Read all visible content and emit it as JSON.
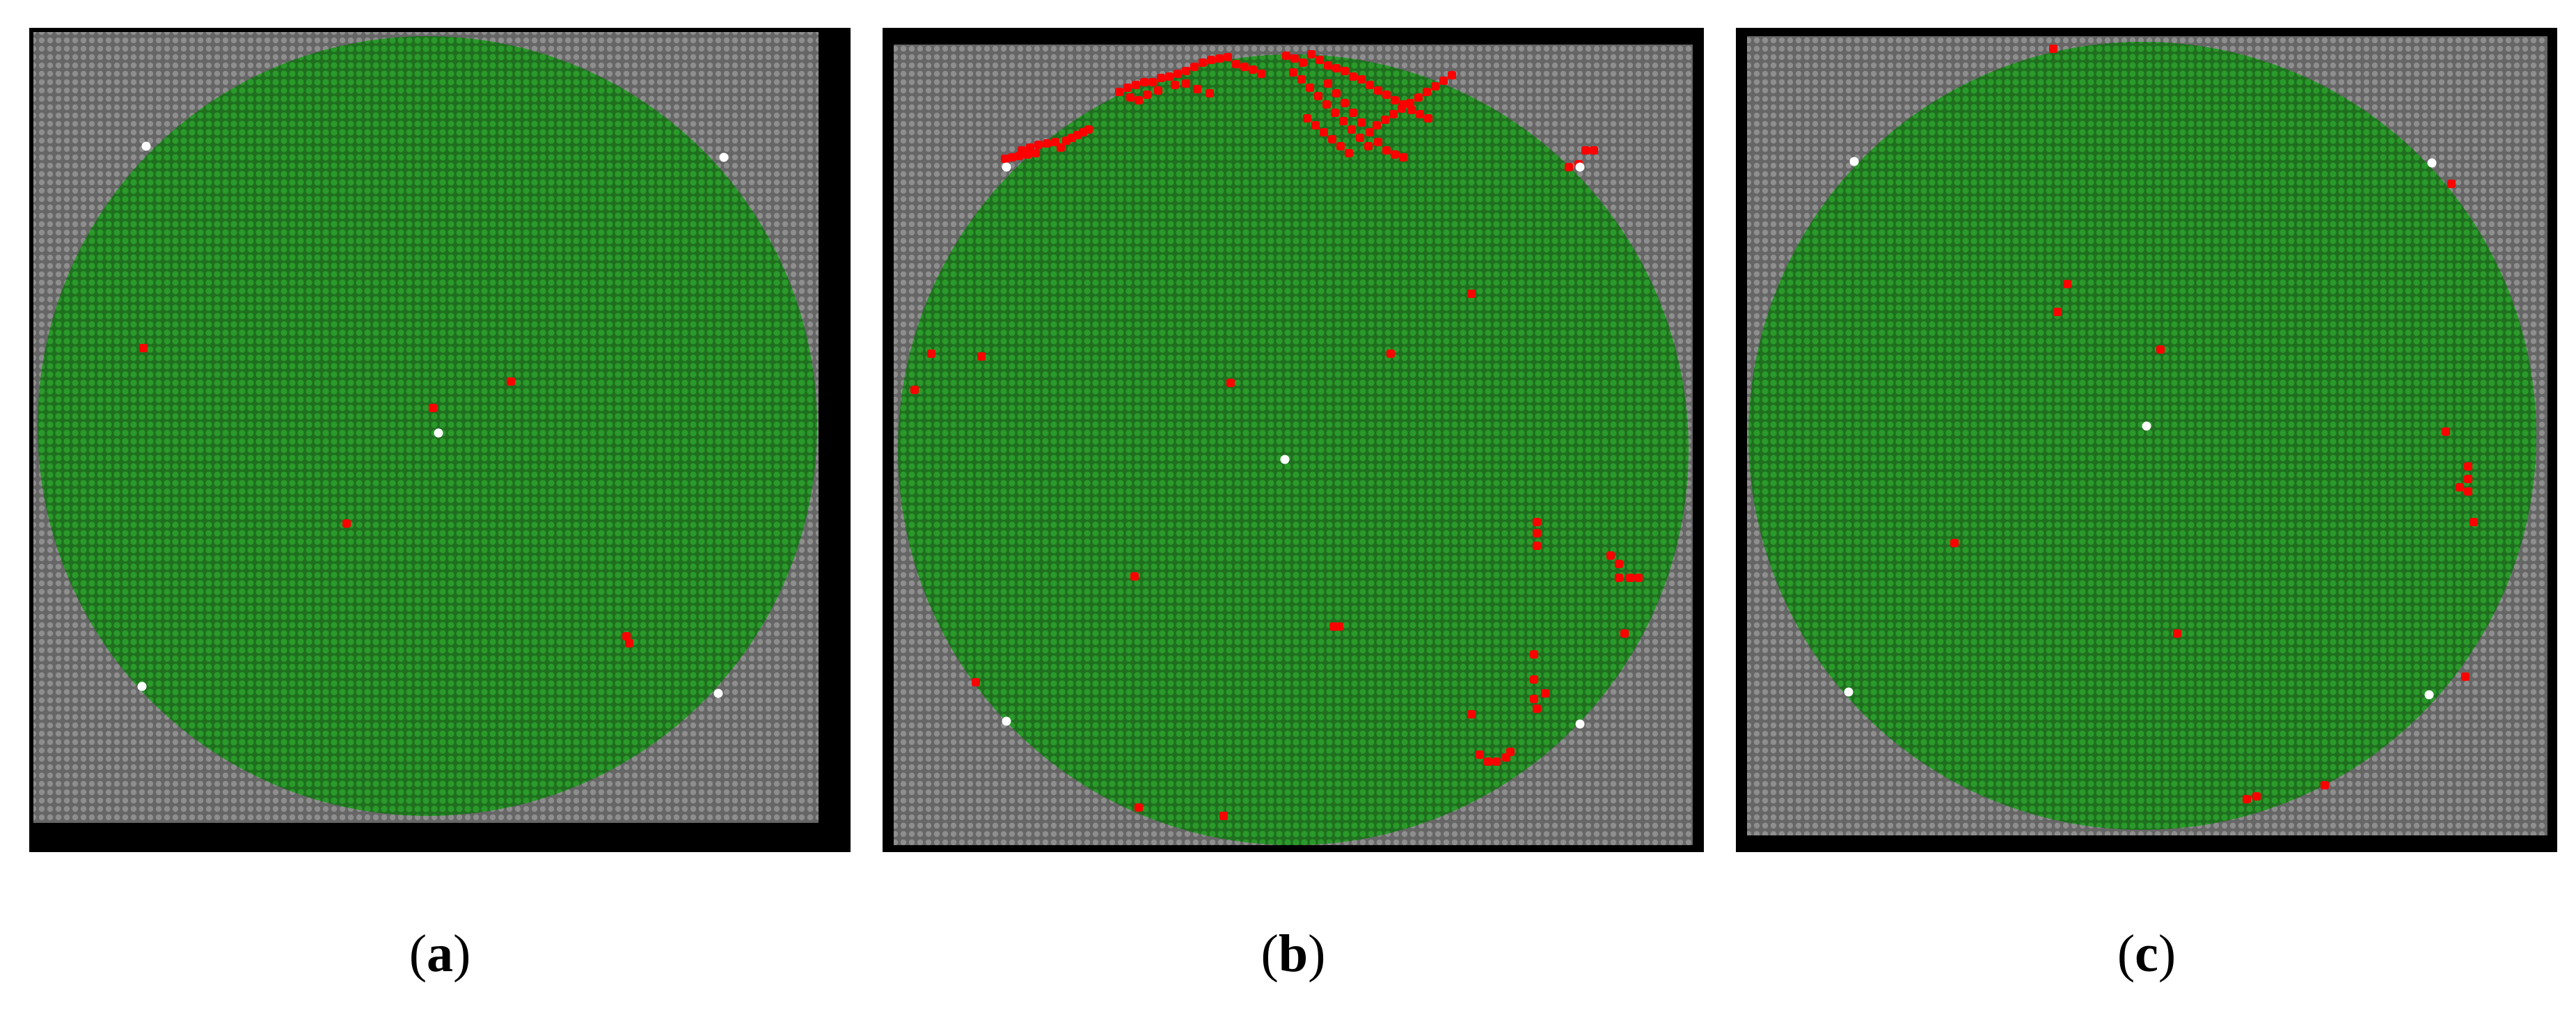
{
  "panels": [
    {
      "id": "a",
      "caption": "(a)",
      "caption_letter": "a",
      "failed_die_count": 7,
      "reference_mark_count": 5
    },
    {
      "id": "b",
      "caption": "(b)",
      "caption_letter": "b",
      "failed_die_count": 120,
      "reference_mark_count": 5
    },
    {
      "id": "c",
      "caption": "(c)",
      "caption_letter": "c",
      "failed_die_count": 16,
      "reference_mark_count": 5
    }
  ],
  "colors": {
    "background_border": "#000000",
    "off_wafer_die": "#7a7a7a",
    "pass_die": "#228b22",
    "fail_die": "#ff0000",
    "reference_mark": "#ffffff"
  }
}
